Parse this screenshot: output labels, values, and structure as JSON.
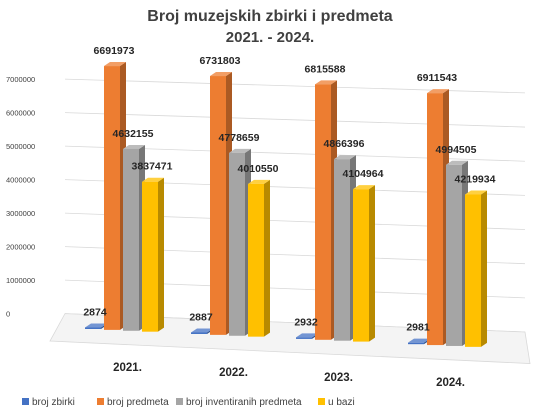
{
  "chart_data": {
    "type": "bar",
    "title": "Broj muzejskih zbirki i predmeta",
    "subtitle": "2021. - 2024.",
    "categories": [
      "2021.",
      "2022.",
      "2023.",
      "2024."
    ],
    "series": [
      {
        "name": "broj zbirki",
        "color": "#4472C4",
        "values": [
          2874,
          2887,
          2932,
          2981
        ]
      },
      {
        "name": "broj predmeta",
        "color": "#ED7D31",
        "values": [
          6691973,
          6731803,
          6815588,
          6911543
        ]
      },
      {
        "name": "broj inventiranih predmeta",
        "color": "#A5A5A5",
        "values": [
          4632155,
          4778659,
          4866396,
          4994505
        ]
      },
      {
        "name": "u bazi",
        "color": "#FFC000",
        "values": [
          3837471,
          4010550,
          4104964,
          4219934
        ]
      }
    ],
    "y_ticks": [
      "0",
      "1000000",
      "2000000",
      "3000000",
      "4000000",
      "5000000",
      "6000000",
      "7000000"
    ],
    "ylim": [
      0,
      7000000
    ],
    "grid": true,
    "legend_position": "bottom",
    "style": "3d-clustered-column"
  }
}
